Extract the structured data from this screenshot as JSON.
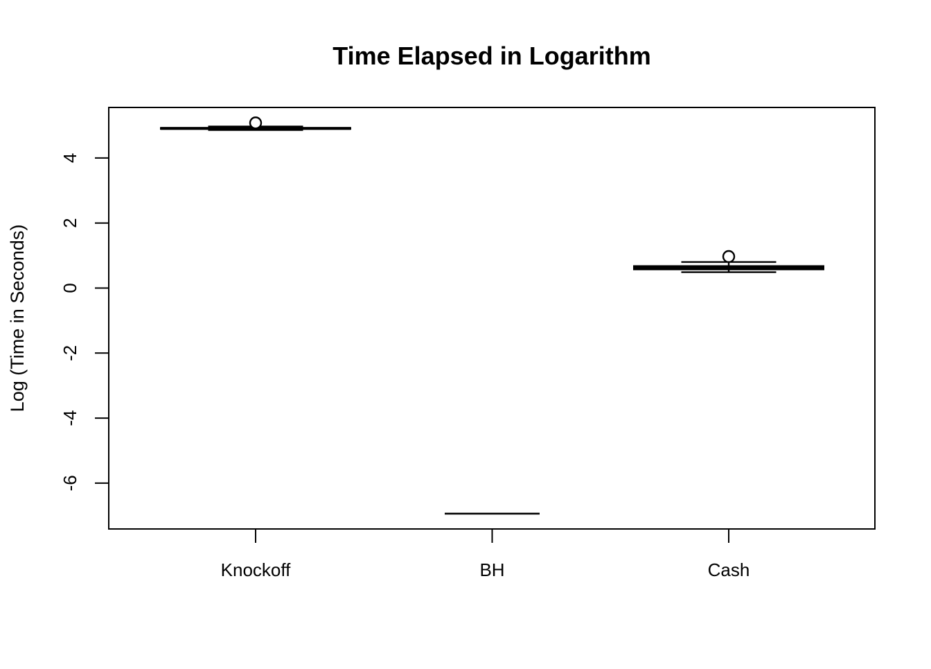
{
  "chart_data": {
    "type": "boxplot",
    "title": "Time Elapsed in Logarithm",
    "xlabel": "",
    "ylabel": "Log (Time in Seconds)",
    "categories": [
      "Knockoff",
      "BH",
      "Cash"
    ],
    "yticks": [
      -6,
      -4,
      -2,
      0,
      2,
      4
    ],
    "ylim": [
      -7.4,
      5.55
    ],
    "series": [
      {
        "name": "Knockoff",
        "median": 4.91,
        "q1": 4.89,
        "q3": 4.93,
        "whisker_low": 4.86,
        "whisker_high": 4.97,
        "outliers": [
          5.08
        ]
      },
      {
        "name": "BH",
        "median": -6.94,
        "q1": -6.94,
        "q3": -6.94,
        "whisker_low": -6.94,
        "whisker_high": -6.94,
        "outliers": []
      },
      {
        "name": "Cash",
        "median": 0.63,
        "q1": 0.57,
        "q3": 0.68,
        "whisker_low": 0.49,
        "whisker_high": 0.8,
        "outliers": [
          0.97
        ]
      }
    ],
    "colors": {
      "line": "#000000",
      "background": "#ffffff"
    },
    "layout_hints": {
      "legend": "none",
      "grid": false,
      "frame_box": true,
      "y_tick_labels_rotated": true,
      "style": "r-base-boxplot"
    }
  }
}
